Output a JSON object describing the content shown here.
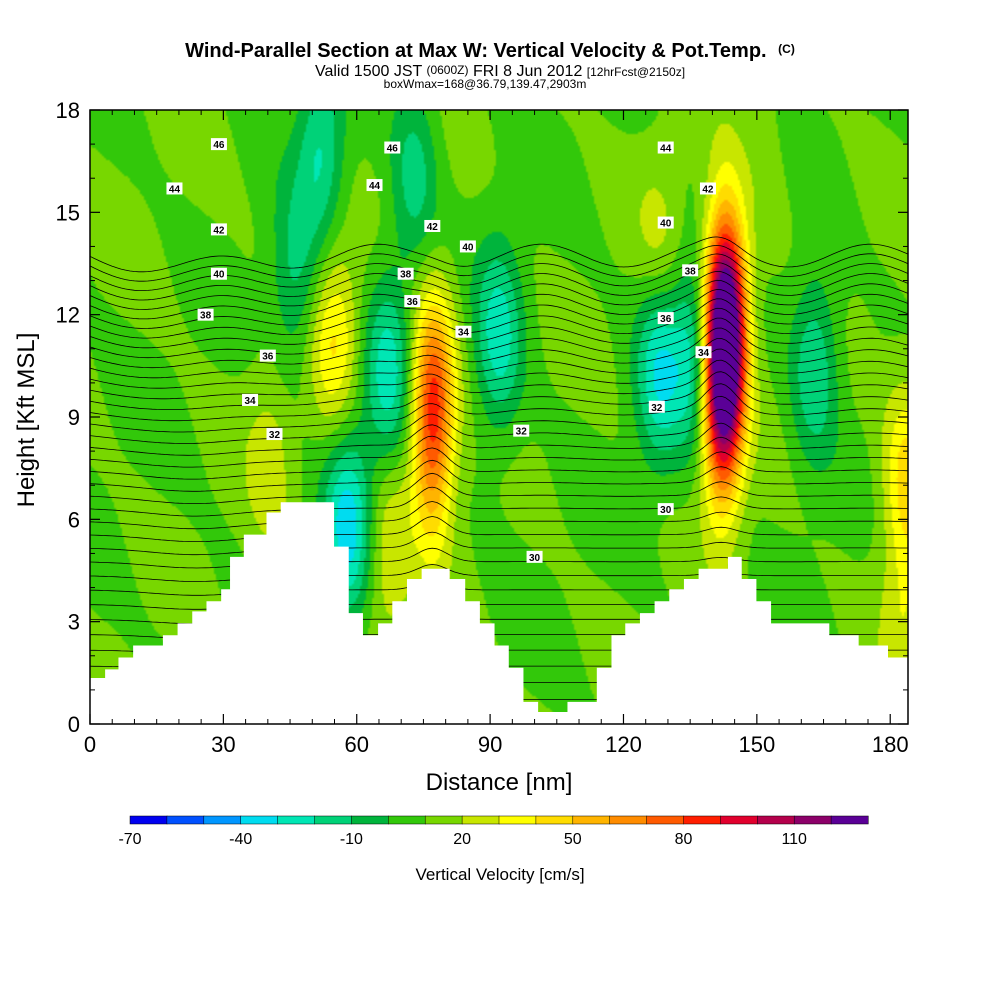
{
  "title": {
    "main": "Wind-Parallel Section at Max W: Vertical Velocity & Pot.Temp.",
    "sup": "(C)",
    "valid_prefix": "Valid 1500 JST",
    "valid_utc": "(0600Z)",
    "valid_date": "FRI 8 Jun 2012",
    "forecast": "[12hrFcst@2150z]",
    "box": "boxWmax=168@36.79,139.47,2903m"
  },
  "chart_data": {
    "type": "heatmap",
    "xlabel": "Distance [nm]",
    "ylabel": "Height [Kft MSL]",
    "xlim": [
      0,
      184
    ],
    "ylim": [
      0,
      18
    ],
    "x_ticks": [
      0,
      30,
      60,
      90,
      120,
      150,
      180
    ],
    "y_ticks": [
      0,
      3,
      6,
      9,
      12,
      15,
      18
    ],
    "colorbar": {
      "title": "Vertical Velocity [cm/s]",
      "levels": [
        -70,
        -60,
        -50,
        -40,
        -30,
        -20,
        -10,
        0,
        10,
        20,
        30,
        40,
        50,
        60,
        70,
        80,
        90,
        100,
        110,
        120,
        130
      ],
      "colors": [
        "#0000f0",
        "#0050ff",
        "#0096ff",
        "#00dcf0",
        "#00e6b4",
        "#00d278",
        "#00b43c",
        "#32c80a",
        "#78d700",
        "#c8e600",
        "#ffff00",
        "#ffdc00",
        "#ffb400",
        "#ff8c00",
        "#ff5a00",
        "#ff1e00",
        "#e1002d",
        "#b4004b",
        "#8c0069",
        "#5a0096"
      ],
      "tick_labels": [
        "-70",
        "-40",
        "-10",
        "20",
        "50",
        "80",
        "110"
      ]
    },
    "vertical_velocity_features": [
      {
        "x": 143,
        "y": 11.8,
        "peak": 135
      },
      {
        "x": 142,
        "y": 9.6,
        "peak": 95
      },
      {
        "x": 77,
        "y": 8.6,
        "peak": 70
      },
      {
        "x": 77.5,
        "y": 10.3,
        "peak": 35
      },
      {
        "x": 55,
        "y": 11.3,
        "peak": 40
      },
      {
        "x": 40.5,
        "y": 7.7,
        "peak": 25
      },
      {
        "x": 184,
        "y": 7.2,
        "peak": 45
      },
      {
        "x": 183,
        "y": 3.0,
        "peak": 25
      },
      {
        "x": 128,
        "y": 13.8,
        "peak": 25
      },
      {
        "x": 152,
        "y": 16.5,
        "peak": 15
      },
      {
        "x": 67,
        "y": 5.2,
        "peak": 30
      },
      {
        "x": 128,
        "y": 10.5,
        "peak": -30
      },
      {
        "x": 137,
        "y": 10.8,
        "peak": -30
      },
      {
        "x": 92,
        "y": 11.3,
        "peak": -25
      },
      {
        "x": 67,
        "y": 10.3,
        "peak": -25
      },
      {
        "x": 58,
        "y": 5.8,
        "peak": -35
      },
      {
        "x": 52,
        "y": 16.8,
        "peak": -20
      },
      {
        "x": 73,
        "y": 16.0,
        "peak": -15
      },
      {
        "x": 46,
        "y": 13.0,
        "peak": -12
      },
      {
        "x": 163,
        "y": 10.5,
        "peak": -20
      }
    ],
    "potential_temperature_contours": {
      "units": "C",
      "labels": [
        {
          "text": "46",
          "x": 29,
          "y": 17.0
        },
        {
          "text": "44",
          "x": 19,
          "y": 15.7
        },
        {
          "text": "42",
          "x": 29,
          "y": 14.5
        },
        {
          "text": "40",
          "x": 29,
          "y": 13.2
        },
        {
          "text": "38",
          "x": 26,
          "y": 12.0
        },
        {
          "text": "36",
          "x": 40,
          "y": 10.8
        },
        {
          "text": "34",
          "x": 36,
          "y": 9.5
        },
        {
          "text": "32",
          "x": 41.5,
          "y": 8.5
        },
        {
          "text": "46",
          "x": 68,
          "y": 16.9
        },
        {
          "text": "44",
          "x": 64,
          "y": 15.8
        },
        {
          "text": "42",
          "x": 77,
          "y": 14.6
        },
        {
          "text": "40",
          "x": 85,
          "y": 14.0
        },
        {
          "text": "38",
          "x": 71,
          "y": 13.2
        },
        {
          "text": "36",
          "x": 72.5,
          "y": 12.4
        },
        {
          "text": "34",
          "x": 84,
          "y": 11.5
        },
        {
          "text": "32",
          "x": 97,
          "y": 8.6
        },
        {
          "text": "30",
          "x": 100,
          "y": 4.9
        },
        {
          "text": "44",
          "x": 129.5,
          "y": 16.9
        },
        {
          "text": "42",
          "x": 139,
          "y": 15.7
        },
        {
          "text": "40",
          "x": 129.5,
          "y": 14.7
        },
        {
          "text": "38",
          "x": 135,
          "y": 13.3
        },
        {
          "text": "36",
          "x": 129.5,
          "y": 11.9
        },
        {
          "text": "34",
          "x": 138,
          "y": 10.9
        },
        {
          "text": "32",
          "x": 127.5,
          "y": 9.3
        },
        {
          "text": "30",
          "x": 129.5,
          "y": 6.3
        }
      ]
    },
    "terrain_height": [
      {
        "x": 0,
        "y": 1.35
      },
      {
        "x": 3.4,
        "y": 1.6
      },
      {
        "x": 6.4,
        "y": 1.95
      },
      {
        "x": 9.7,
        "y": 2.3
      },
      {
        "x": 16.4,
        "y": 2.6
      },
      {
        "x": 19.7,
        "y": 2.95
      },
      {
        "x": 23,
        "y": 3.3
      },
      {
        "x": 26.2,
        "y": 3.6
      },
      {
        "x": 29.5,
        "y": 3.95
      },
      {
        "x": 31.5,
        "y": 4.9
      },
      {
        "x": 34.6,
        "y": 5.55
      },
      {
        "x": 39.7,
        "y": 6.2
      },
      {
        "x": 42.9,
        "y": 6.5
      },
      {
        "x": 54.9,
        "y": 5.2
      },
      {
        "x": 58.2,
        "y": 3.25
      },
      {
        "x": 61.4,
        "y": 2.6
      },
      {
        "x": 64.8,
        "y": 2.95
      },
      {
        "x": 68,
        "y": 3.6
      },
      {
        "x": 71.3,
        "y": 4.25
      },
      {
        "x": 74.6,
        "y": 4.55
      },
      {
        "x": 80.9,
        "y": 4.25
      },
      {
        "x": 84.4,
        "y": 3.6
      },
      {
        "x": 87.7,
        "y": 2.95
      },
      {
        "x": 91,
        "y": 2.3
      },
      {
        "x": 94.2,
        "y": 1.65
      },
      {
        "x": 97.5,
        "y": 0.65
      },
      {
        "x": 100.8,
        "y": 0.35
      },
      {
        "x": 107.4,
        "y": 0.65
      },
      {
        "x": 110.7,
        "y": 0.65
      },
      {
        "x": 114,
        "y": 1.65
      },
      {
        "x": 117.3,
        "y": 2.6
      },
      {
        "x": 120.4,
        "y": 2.95
      },
      {
        "x": 123.7,
        "y": 3.25
      },
      {
        "x": 127,
        "y": 3.6
      },
      {
        "x": 130.3,
        "y": 3.95
      },
      {
        "x": 133.6,
        "y": 4.25
      },
      {
        "x": 136.9,
        "y": 4.55
      },
      {
        "x": 143.5,
        "y": 4.9
      },
      {
        "x": 146.6,
        "y": 4.25
      },
      {
        "x": 149.9,
        "y": 3.6
      },
      {
        "x": 153.2,
        "y": 2.95
      },
      {
        "x": 163,
        "y": 2.95
      },
      {
        "x": 166.3,
        "y": 2.6
      },
      {
        "x": 172.9,
        "y": 2.3
      },
      {
        "x": 179.5,
        "y": 1.95
      },
      {
        "x": 184,
        "y": 1.95
      }
    ]
  }
}
